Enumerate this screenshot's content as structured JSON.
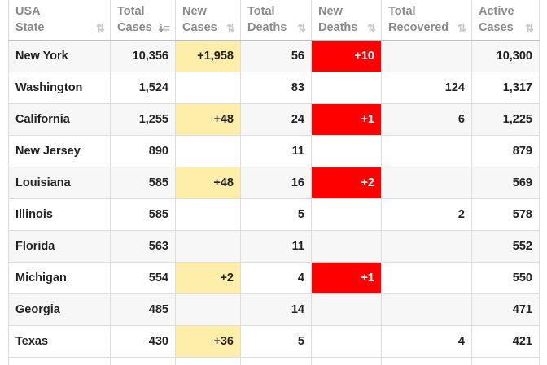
{
  "columns": [
    {
      "line1": "USA",
      "line2": "State",
      "sort": "⇅",
      "active": false
    },
    {
      "line1": "Total",
      "line2": "Cases",
      "sort": "⇣≡",
      "active": true
    },
    {
      "line1": "New",
      "line2": "Cases",
      "sort": "⇅",
      "active": false
    },
    {
      "line1": "Total",
      "line2": "Deaths",
      "sort": "⇅",
      "active": false
    },
    {
      "line1": "New",
      "line2": "Deaths",
      "sort": "⇅",
      "active": false
    },
    {
      "line1": "Total",
      "line2": "Recovered",
      "sort": "⇅",
      "active": false
    },
    {
      "line1": "Active",
      "line2": "Cases",
      "sort": "⇅",
      "active": false
    }
  ],
  "rows": [
    {
      "state": "New York",
      "total_cases": "10,356",
      "new_cases": "+1,958",
      "total_deaths": "56",
      "new_deaths": "+10",
      "total_recovered": "",
      "active_cases": "10,300"
    },
    {
      "state": "Washington",
      "total_cases": "1,524",
      "new_cases": "",
      "total_deaths": "83",
      "new_deaths": "",
      "total_recovered": "124",
      "active_cases": "1,317"
    },
    {
      "state": "California",
      "total_cases": "1,255",
      "new_cases": "+48",
      "total_deaths": "24",
      "new_deaths": "+1",
      "total_recovered": "6",
      "active_cases": "1,225"
    },
    {
      "state": "New Jersey",
      "total_cases": "890",
      "new_cases": "",
      "total_deaths": "11",
      "new_deaths": "",
      "total_recovered": "",
      "active_cases": "879"
    },
    {
      "state": "Louisiana",
      "total_cases": "585",
      "new_cases": "+48",
      "total_deaths": "16",
      "new_deaths": "+2",
      "total_recovered": "",
      "active_cases": "569"
    },
    {
      "state": "Illinois",
      "total_cases": "585",
      "new_cases": "",
      "total_deaths": "5",
      "new_deaths": "",
      "total_recovered": "2",
      "active_cases": "578"
    },
    {
      "state": "Florida",
      "total_cases": "563",
      "new_cases": "",
      "total_deaths": "11",
      "new_deaths": "",
      "total_recovered": "",
      "active_cases": "552"
    },
    {
      "state": "Michigan",
      "total_cases": "554",
      "new_cases": "+2",
      "total_deaths": "4",
      "new_deaths": "+1",
      "total_recovered": "",
      "active_cases": "550"
    },
    {
      "state": "Georgia",
      "total_cases": "485",
      "new_cases": "",
      "total_deaths": "14",
      "new_deaths": "",
      "total_recovered": "",
      "active_cases": "471"
    },
    {
      "state": "Texas",
      "total_cases": "430",
      "new_cases": "+36",
      "total_deaths": "5",
      "new_deaths": "",
      "total_recovered": "4",
      "active_cases": "421"
    }
  ],
  "colors": {
    "new_cases_highlight": "#ffeeaa",
    "new_deaths_highlight": "#ff0000",
    "header_text": "#8a8a8a",
    "cell_text": "#222222"
  }
}
